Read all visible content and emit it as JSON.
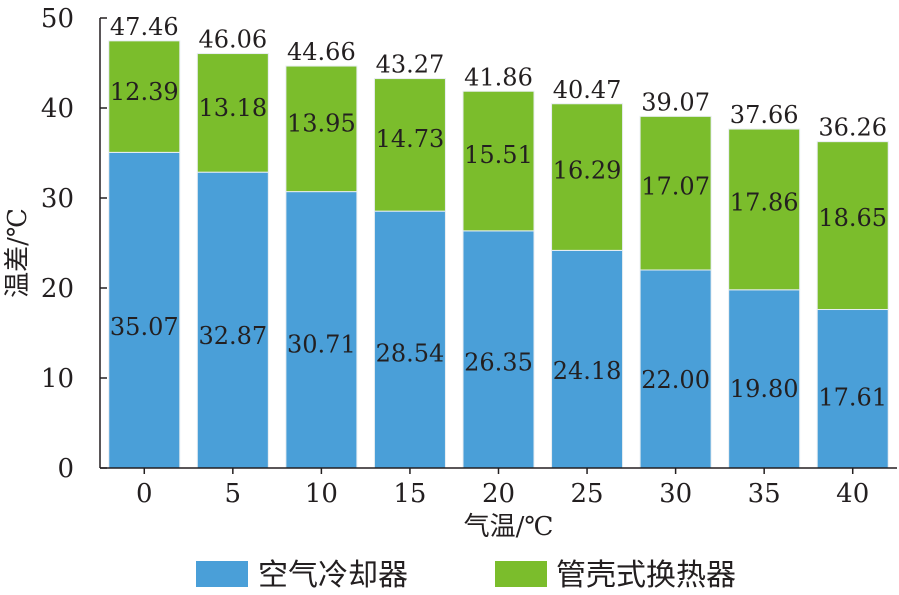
{
  "chart_data": {
    "type": "bar",
    "stacked": true,
    "categories": [
      "0",
      "5",
      "10",
      "15",
      "20",
      "25",
      "30",
      "35",
      "40"
    ],
    "series": [
      {
        "name": "空气冷却器",
        "color": "#4a9fd8",
        "values": [
          35.07,
          32.87,
          30.71,
          28.54,
          26.35,
          24.18,
          22.0,
          19.8,
          17.61
        ],
        "labels": [
          "35.07",
          "32.87",
          "30.71",
          "28.54",
          "26.35",
          "24.18",
          "22.00",
          "19.80",
          "17.61"
        ]
      },
      {
        "name": "管壳式换热器",
        "color": "#7bbd2c",
        "values": [
          12.39,
          13.18,
          13.95,
          14.73,
          15.51,
          16.29,
          17.07,
          17.86,
          18.65
        ],
        "labels": [
          "12.39",
          "13.18",
          "13.95",
          "14.73",
          "15.51",
          "16.29",
          "17.07",
          "17.86",
          "18.65"
        ]
      }
    ],
    "totals": [
      47.46,
      46.06,
      44.66,
      43.27,
      41.86,
      40.47,
      39.07,
      37.66,
      36.26
    ],
    "total_labels": [
      "47.46",
      "46.06",
      "44.66",
      "43.27",
      "41.86",
      "40.47",
      "39.07",
      "37.66",
      "36.26"
    ],
    "xlabel": "气温/℃",
    "ylabel": "温差/℃",
    "ylim": [
      0,
      50
    ],
    "yticks": [
      "0",
      "10",
      "20",
      "30",
      "40",
      "50"
    ],
    "grid": false,
    "legend_position": "bottom"
  }
}
